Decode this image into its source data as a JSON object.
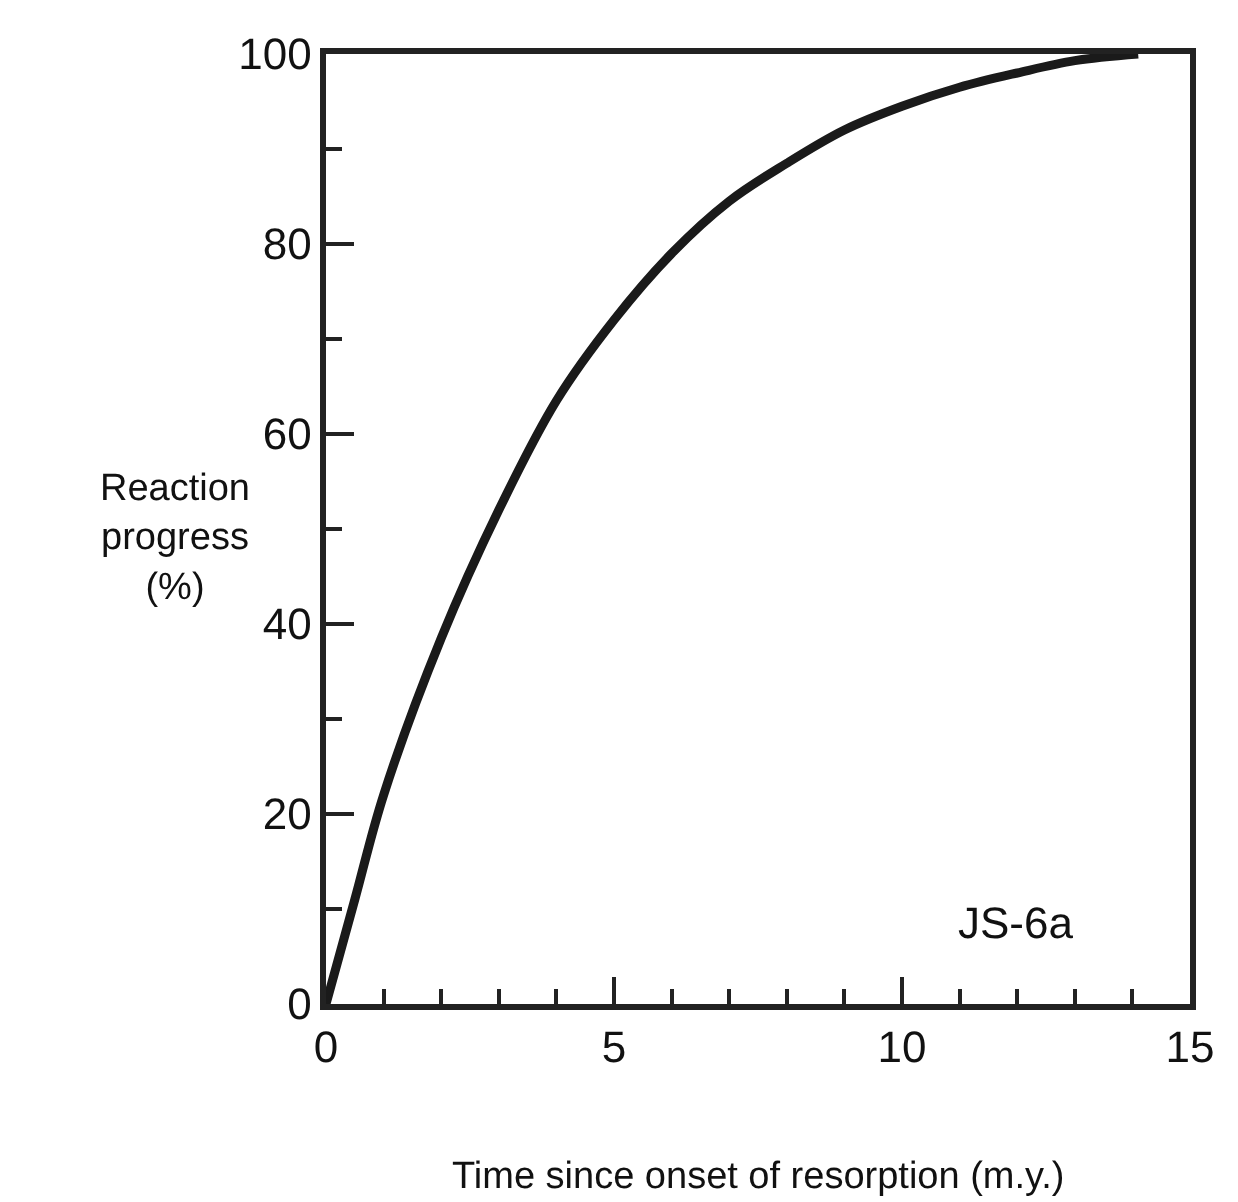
{
  "chart_data": {
    "type": "line",
    "xlabel": "Time since onset of resorption (m.y.)",
    "ylabel": "Reaction\nprogress\n(%)",
    "x": [
      0,
      0.5,
      1,
      2,
      3,
      4,
      5,
      6,
      7,
      8,
      9,
      10,
      11,
      12,
      13,
      14.1
    ],
    "series": [
      {
        "color": "#1a1a1a",
        "values": [
          0,
          11,
          22,
          38.5,
          52,
          63.5,
          72,
          79,
          84.5,
          88.5,
          92,
          94.5,
          96.5,
          98,
          99.3,
          100
        ]
      }
    ],
    "annotations": [
      "JS-6a"
    ],
    "xlim": [
      0,
      15
    ],
    "ylim": [
      0,
      100
    ],
    "xticks": [
      0,
      {
        "value": 1,
        "label": null
      },
      {
        "value": 2,
        "label": null
      },
      {
        "value": 3,
        "label": null
      },
      {
        "value": 4,
        "label": null
      },
      5,
      {
        "value": 6,
        "label": null
      },
      {
        "value": 7,
        "label": null
      },
      {
        "value": 8,
        "label": null
      },
      {
        "value": 9,
        "label": null
      },
      10,
      {
        "value": 11,
        "label": null
      },
      {
        "value": 12,
        "label": null
      },
      {
        "value": 13,
        "label": null
      },
      {
        "value": 14,
        "label": null
      },
      15
    ],
    "yticks": [
      0,
      {
        "value": 10,
        "label": null
      },
      20,
      {
        "value": 30,
        "label": null
      },
      40,
      {
        "value": 50,
        "label": null
      },
      60,
      {
        "value": 70,
        "label": null
      },
      80,
      {
        "value": 90,
        "label": null
      },
      100
    ],
    "marker": "none",
    "line_style": "solid"
  }
}
